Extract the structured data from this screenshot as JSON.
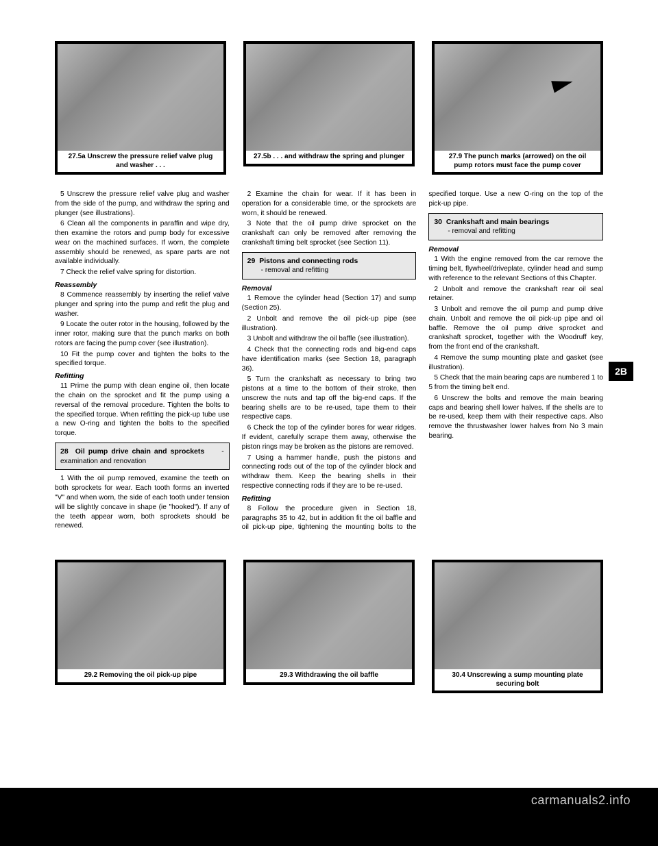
{
  "figures": {
    "top": [
      {
        "caption": "27.5a Unscrew the pressure relief valve plug and washer . . ."
      },
      {
        "caption": "27.5b . . . and withdraw the spring and plunger"
      },
      {
        "caption": "27.9 The punch marks (arrowed) on the oil pump rotors must face the pump cover"
      }
    ],
    "bottom": [
      {
        "caption": "29.2 Removing the oil pick-up pipe"
      },
      {
        "caption": "29.3 Withdrawing the oil baffle"
      },
      {
        "caption": "30.4 Unscrewing a sump mounting plate securing bolt"
      }
    ]
  },
  "sections": {
    "s28": {
      "num": "28",
      "title": "Oil pump drive chain and sprockets",
      "sub": "- examination and renovation"
    },
    "s29": {
      "num": "29",
      "title": "Pistons and connecting rods",
      "sub": "- removal and refitting"
    },
    "s30": {
      "num": "30",
      "title": "Crankshaft and main bearings",
      "sub": "- removal and refitting"
    }
  },
  "body": {
    "c1p1": "5  Unscrew the pressure relief valve plug and washer from the side of the pump, and withdraw the spring and plunger (see illustrations).",
    "c1p2": "6  Clean all the components in paraffin and wipe dry, then examine the rotors and pump body for excessive wear on the machined surfaces. If worn, the complete assembly should be renewed, as spare parts are not available individually.",
    "c1p3": "7  Check the relief valve spring for distortion.",
    "c1h1": "Reassembly",
    "c1p4": "8  Commence reassembly by inserting the relief valve plunger and spring into the pump and refit the plug and washer.",
    "c1p5": "9  Locate the outer rotor in the housing, followed by the inner rotor, making sure that the punch marks on both rotors are facing the pump cover (see illustration).",
    "c1p6": "10  Fit the pump cover and tighten the bolts to the specified torque.",
    "c1h2": "Refitting",
    "c1p7": "11  Prime the pump with clean engine oil, then locate the chain on the sprocket and fit the pump using a reversal of the removal procedure. Tighten the bolts to the specified torque. When refitting the pick-up tube use a new O-ring and tighten the bolts to the specified torque.",
    "c2p1": "1  With the oil pump removed, examine the teeth on both sprockets for wear. Each tooth forms an inverted \"V\" and when worn, the side of each tooth under tension will be slightly concave in shape (ie \"hooked\"). If any of the teeth appear worn, both sprockets should be renewed.",
    "c2p2": "2  Examine the chain for wear. If it has been in operation for a considerable time, or the sprockets are worn, it should be renewed.",
    "c2p3": "3  Note that the oil pump drive sprocket on the crankshaft can only be removed after removing the crankshaft timing belt sprocket (see Section 11).",
    "c2h1": "Removal",
    "c2p4": "1  Remove the cylinder head (Section 17) and sump (Section 25).",
    "c2p5": "2  Unbolt and remove the oil pick-up pipe (see illustration).",
    "c2p6": "3  Unbolt and withdraw the oil baffle (see illustration).",
    "c2p7": "4  Check that the connecting rods and big-end caps have identification marks (see Section 18, paragraph 36).",
    "c2p8": "5  Turn the crankshaft as necessary to bring two pistons at a time to the bottom of their stroke, then unscrew the nuts and tap off the big-end caps. If the bearing shells are to be re-used, tape them to their respective caps.",
    "c2p9": "6  Check the top of the cylinder bores for wear ridges. If evident, carefully scrape them away, otherwise the piston rings may be broken as the pistons are removed.",
    "c2p10": "7  Using a hammer handle, push the pistons and connecting rods out of the top of the cylinder block and withdraw them. Keep the bearing shells in their respective connecting rods if they are to be re-used.",
    "c3h1": "Refitting",
    "c3p1": "8  Follow the procedure given in Section 18, paragraphs 35 to 42, but in addition fit the oil baffle and oil pick-up pipe, tightening the mounting bolts to the specified torque. Use a new O-ring on the top of the pick-up pipe.",
    "c3h2": "Removal",
    "c3p2": "1  With the engine removed from the car remove the timing belt, flywheel/driveplate, cylinder head and sump with reference to the relevant Sections of this Chapter.",
    "c3p3": "2  Unbolt and remove the crankshaft rear oil seal retainer.",
    "c3p4": "3  Unbolt and remove the oil pump and pump drive chain. Unbolt and remove the oil pick-up pipe and oil baffle. Remove the oil pump drive sprocket and crankshaft sprocket, together with the Woodruff key, from the front end of the crankshaft.",
    "c3p5": "4  Remove the sump mounting plate and gasket (see illustration).",
    "c3p6": "5  Check that the main bearing caps are numbered 1 to 5 from the timing belt end.",
    "c3p7": "6  Unscrew the bolts and remove the main bearing caps and bearing shell lower halves. If the shells are to be re-used, keep them with their respective caps. Also remove the thrustwasher lower halves from No 3 main bearing."
  },
  "sideTab": "2B",
  "watermark": "carmanuals2.info",
  "colors": {
    "pageBg": "#ffffff",
    "outerBg": "#000000",
    "boxBg": "#e8e8e8",
    "text": "#000000",
    "tabBg": "#000000",
    "tabText": "#ffffff"
  }
}
